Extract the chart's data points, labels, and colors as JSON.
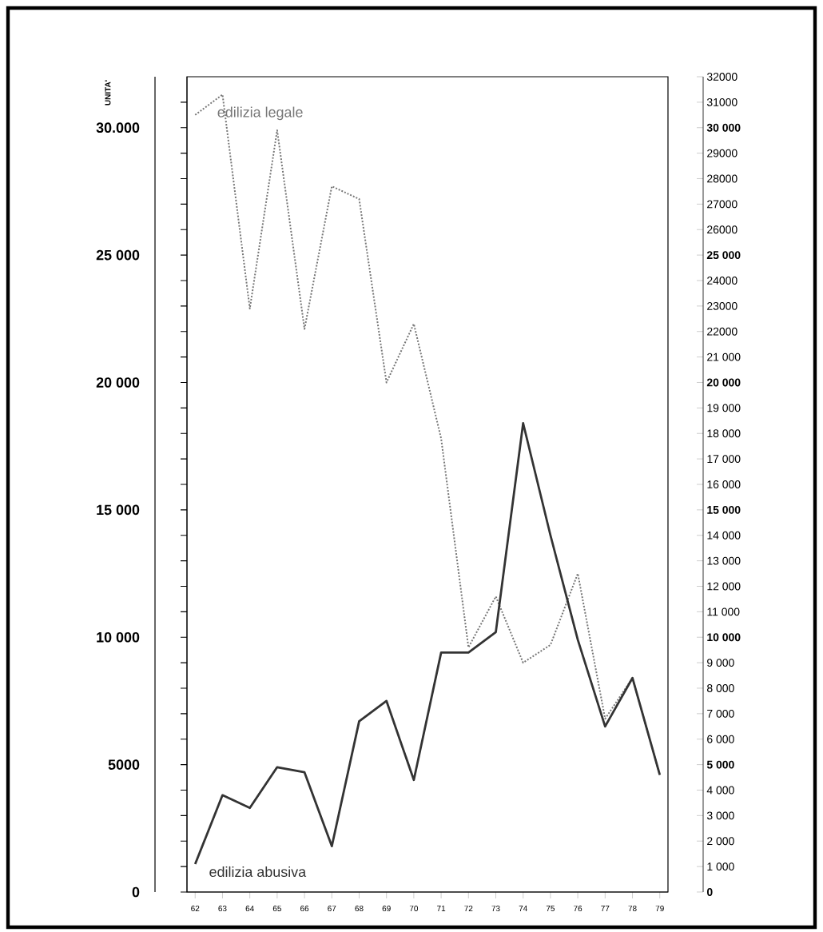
{
  "chart_data": {
    "type": "line",
    "ylabel": "UNITA'",
    "categories": [
      "62",
      "63",
      "64",
      "65",
      "66",
      "67",
      "68",
      "69",
      "70",
      "71",
      "72",
      "73",
      "74",
      "75",
      "76",
      "77",
      "78",
      "79"
    ],
    "series": [
      {
        "name": "edilizia legale",
        "color": "#777777",
        "line_style": "dotted",
        "values": [
          30500,
          31300,
          22900,
          29900,
          22100,
          27700,
          27200,
          20000,
          22300,
          17800,
          9600,
          11600,
          9000,
          9700,
          12500,
          6800,
          8400,
          4600
        ]
      },
      {
        "name": "edilizia abusiva",
        "color": "#333333",
        "line_style": "solid",
        "values": [
          1100,
          3800,
          3300,
          4900,
          4700,
          1800,
          6700,
          7500,
          4400,
          9400,
          9400,
          10200,
          18400,
          14000,
          9900,
          6500,
          8400,
          4600
        ]
      }
    ],
    "ylim": [
      0,
      32000
    ],
    "yticks": [
      0,
      {
        "value": 1000,
        "label": null
      },
      {
        "value": 2000,
        "label": null
      },
      {
        "value": 3000,
        "label": null
      },
      {
        "value": 4000,
        "label": null
      },
      {
        "value": 5000,
        "label": "5000"
      },
      {
        "value": 6000,
        "label": null
      },
      {
        "value": 7000,
        "label": null
      },
      {
        "value": 8000,
        "label": null
      },
      {
        "value": 9000,
        "label": null
      },
      {
        "value": 10000,
        "label": "10 000"
      },
      {
        "value": 11000,
        "label": null
      },
      {
        "value": 12000,
        "label": null
      },
      {
        "value": 13000,
        "label": null
      },
      {
        "value": 14000,
        "label": null
      },
      {
        "value": 15000,
        "label": "15 000"
      },
      {
        "value": 16000,
        "label": null
      },
      {
        "value": 17000,
        "label": null
      },
      {
        "value": 18000,
        "label": null
      },
      {
        "value": 19000,
        "label": null
      },
      {
        "value": 20000,
        "label": "20 000"
      },
      {
        "value": 21000,
        "label": null
      },
      {
        "value": 22000,
        "label": null
      },
      {
        "value": 23000,
        "label": null
      },
      {
        "value": 24000,
        "label": null
      },
      {
        "value": 25000,
        "label": "25 000"
      },
      {
        "value": 26000,
        "label": null
      },
      {
        "value": 27000,
        "label": null
      },
      {
        "value": 28000,
        "label": null
      },
      {
        "value": 29000,
        "label": null
      },
      {
        "value": 30000,
        "label": "30.000"
      },
      {
        "value": 31000,
        "label": null
      }
    ],
    "y2lim": [
      0,
      32000
    ],
    "y2ticks": [
      0,
      {
        "value": 1000,
        "label": "1 000"
      },
      {
        "value": 2000,
        "label": "2 000"
      },
      {
        "value": 3000,
        "label": "3 000"
      },
      {
        "value": 4000,
        "label": "4 000"
      },
      {
        "value": 5000,
        "label": "5 000"
      },
      {
        "value": 6000,
        "label": "6 000"
      },
      {
        "value": 7000,
        "label": "7 000"
      },
      {
        "value": 8000,
        "label": "8 000"
      },
      {
        "value": 9000,
        "label": "9 000"
      },
      {
        "value": 10000,
        "label": "10 000"
      },
      {
        "value": 11000,
        "label": "11 000"
      },
      {
        "value": 12000,
        "label": "12 000"
      },
      {
        "value": 13000,
        "label": "13 000"
      },
      {
        "value": 14000,
        "label": "14 000"
      },
      {
        "value": 15000,
        "label": "15 000"
      },
      {
        "value": 16000,
        "label": "16 000"
      },
      {
        "value": 17000,
        "label": "17 000"
      },
      {
        "value": 18000,
        "label": "18 000"
      },
      {
        "value": 19000,
        "label": "19 000"
      },
      {
        "value": 20000,
        "label": "20 000"
      },
      {
        "value": 21000,
        "label": "21 000"
      },
      {
        "value": 22000,
        "label": "22000"
      },
      {
        "value": 23000,
        "label": "23000"
      },
      {
        "value": 24000,
        "label": "24000"
      },
      {
        "value": 25000,
        "label": "25 000"
      },
      {
        "value": 26000,
        "label": "26000"
      },
      {
        "value": 27000,
        "label": "27000"
      },
      {
        "value": 28000,
        "label": "28000"
      },
      {
        "value": 29000,
        "label": "29000"
      },
      {
        "value": 30000,
        "label": "30 000"
      },
      {
        "value": 31000,
        "label": "31000"
      },
      {
        "value": 32000,
        "label": "32000"
      }
    ],
    "grid": false,
    "marker": "none"
  }
}
